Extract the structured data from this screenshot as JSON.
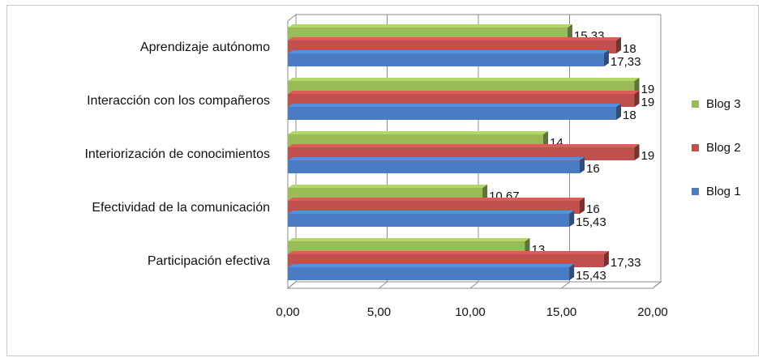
{
  "chart_data": {
    "type": "bar",
    "orientation": "horizontal",
    "style": "3d",
    "categories": [
      "Aprendizaje autónomo",
      "Interacción con los compañeros",
      "Interiorización de conocimientos",
      "Efectividad de la comunicación",
      "Participación efectiva"
    ],
    "series": [
      {
        "name": "Blog 1",
        "color": "#4a7cc4",
        "values": [
          17.33,
          18,
          16,
          15.43,
          15.43
        ],
        "labels": [
          "17,33",
          "18",
          "16",
          "15,43",
          "15,43"
        ]
      },
      {
        "name": "Blog 2",
        "color": "#c0504d",
        "values": [
          18,
          19,
          19,
          16,
          17.33
        ],
        "labels": [
          "18",
          "19",
          "19",
          "16",
          "17,33"
        ]
      },
      {
        "name": "Blog 3",
        "color": "#9bbb59",
        "values": [
          15.33,
          19,
          14,
          10.67,
          13
        ],
        "labels": [
          "15,33",
          "19",
          "14",
          "10,67",
          "13"
        ]
      }
    ],
    "xlim": [
      0,
      20
    ],
    "xticks": [
      0,
      5,
      10,
      15,
      20
    ],
    "xtick_labels": [
      "0,00",
      "5,00",
      "10,00",
      "15,00",
      "20,00"
    ],
    "grid": true,
    "legend_position": "right",
    "legend_order": [
      "Blog 3",
      "Blog 2",
      "Blog 1"
    ]
  }
}
